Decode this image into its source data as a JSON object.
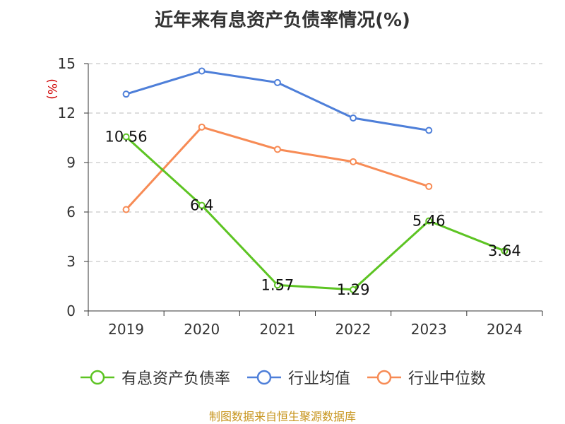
{
  "colors": {
    "green": "#5dc423",
    "blue": "#4e7fd9",
    "orange": "#f78b55",
    "grid": "#bbbbbb",
    "axis": "#333333",
    "unit": "#d00000",
    "source": "#c7951e"
  },
  "chart_data": {
    "type": "line",
    "title": "近年来有息资产负债率情况(%)",
    "ylabel": "(%)",
    "xlabel": "",
    "categories": [
      "2019",
      "2020",
      "2021",
      "2022",
      "2023",
      "2024"
    ],
    "ylim": [
      0,
      15
    ],
    "yticks": [
      0,
      3,
      6,
      9,
      12,
      15
    ],
    "grid": true,
    "legend_position": "bottom",
    "series": [
      {
        "name": "有息资产负债率",
        "color_key": "green",
        "values": [
          10.56,
          6.4,
          1.57,
          1.29,
          5.46,
          3.64
        ],
        "labels": [
          "10.56",
          "6.4",
          "1.57",
          "1.29",
          "5.46",
          "3.64"
        ]
      },
      {
        "name": "行业均值",
        "color_key": "blue",
        "values": [
          13.15,
          14.55,
          13.85,
          11.7,
          10.95,
          null
        ]
      },
      {
        "name": "行业中位数",
        "color_key": "orange",
        "values": [
          6.15,
          11.15,
          9.8,
          9.05,
          7.55,
          null
        ]
      }
    ]
  },
  "footer": {
    "source": "制图数据来自恒生聚源数据库"
  }
}
